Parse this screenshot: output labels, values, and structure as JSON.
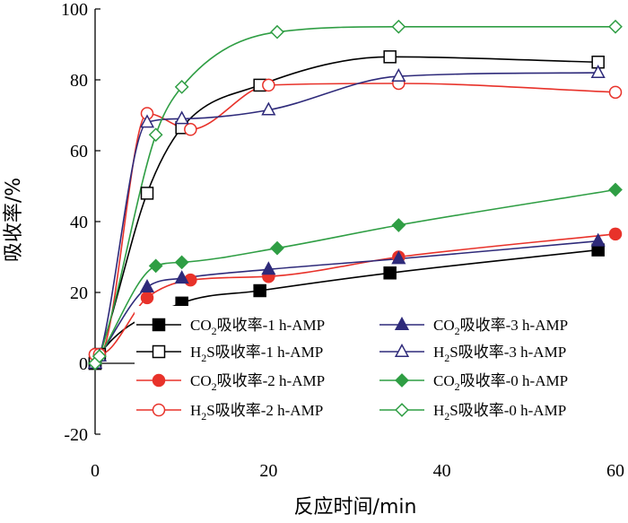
{
  "chart_data": {
    "type": "scatter",
    "xlabel": "反应时间/min",
    "ylabel": "吸收率/%",
    "xlim": [
      0,
      60
    ],
    "ylim": [
      -20,
      100
    ],
    "xticks": [
      "0",
      "20",
      "40",
      "60"
    ],
    "yticks": [
      "-20",
      "0",
      "20",
      "40",
      "60",
      "80",
      "100"
    ],
    "legend_position": "bottom-center",
    "series": [
      {
        "name": "CO2吸收率-1 h-AMP",
        "legend_main": "CO",
        "legend_sub": "2",
        "legend_rest": "吸收率-1 h-AMP",
        "color": "#000000",
        "marker": "square",
        "filled": true,
        "x": [
          0,
          0.5,
          10,
          19,
          34,
          58
        ],
        "y": [
          0,
          2.5,
          17,
          20.5,
          25.5,
          32
        ]
      },
      {
        "name": "H2S吸收率-1 h-AMP",
        "legend_main": "H",
        "legend_sub": "2",
        "legend_rest": "S吸收率-1 h-AMP",
        "color": "#000000",
        "marker": "square",
        "filled": false,
        "x": [
          0,
          0.5,
          6,
          10,
          19,
          34,
          58
        ],
        "y": [
          0,
          2.5,
          48,
          66.5,
          78.5,
          86.5,
          85
        ]
      },
      {
        "name": "CO2吸收率-2 h-AMP",
        "legend_main": "CO",
        "legend_sub": "2",
        "legend_rest": "吸收率-2 h-AMP",
        "color": "#e8322a",
        "marker": "circle",
        "filled": true,
        "x": [
          0,
          0.5,
          6,
          11,
          20,
          35,
          60
        ],
        "y": [
          2.5,
          2.5,
          18.5,
          23.5,
          24.5,
          30,
          36.5
        ]
      },
      {
        "name": "H2S吸收率-2 h-AMP",
        "legend_main": "H",
        "legend_sub": "2",
        "legend_rest": "S吸收率-2 h-AMP",
        "color": "#e8322a",
        "marker": "circle",
        "filled": false,
        "x": [
          0,
          0.5,
          6,
          11,
          20,
          35,
          60
        ],
        "y": [
          2.5,
          2.5,
          70.5,
          66,
          78.5,
          79,
          76.5
        ]
      },
      {
        "name": "CO2吸收率-3 h-AMP",
        "legend_main": "CO",
        "legend_sub": "2",
        "legend_rest": "吸收率-3 h-AMP",
        "color": "#2e2a7a",
        "marker": "triangle",
        "filled": true,
        "x": [
          0,
          0.5,
          6,
          10,
          20,
          35,
          58
        ],
        "y": [
          0,
          2,
          21.5,
          24,
          26.5,
          29.5,
          34.5
        ]
      },
      {
        "name": "H2S吸收率-3 h-AMP",
        "legend_main": "H",
        "legend_sub": "2",
        "legend_rest": "S吸收率-3 h-AMP",
        "color": "#2e2a7a",
        "marker": "triangle",
        "filled": false,
        "x": [
          0,
          0.5,
          6,
          10,
          20,
          35,
          58
        ],
        "y": [
          0,
          2,
          68,
          69,
          71.5,
          81,
          82
        ]
      },
      {
        "name": "CO2吸收率-0 h-AMP",
        "legend_main": "CO",
        "legend_sub": "2",
        "legend_rest": "吸收率-0 h-AMP",
        "color": "#2f9e44",
        "marker": "diamond",
        "filled": true,
        "x": [
          0,
          0.5,
          7,
          10,
          21,
          35,
          60
        ],
        "y": [
          0,
          2,
          27.5,
          28.5,
          32.5,
          39,
          49
        ]
      },
      {
        "name": "H2S吸收率-0 h-AMP",
        "legend_main": "H",
        "legend_sub": "2",
        "legend_rest": "S吸收率-0 h-AMP",
        "color": "#2f9e44",
        "marker": "diamond",
        "filled": false,
        "x": [
          0,
          0.5,
          7,
          10,
          21,
          35,
          60
        ],
        "y": [
          0,
          2,
          64.5,
          78,
          93.5,
          95,
          95
        ]
      }
    ],
    "legend_layout": [
      [
        "CO2吸收率-1 h-AMP",
        "CO2吸收率-3 h-AMP"
      ],
      [
        "H2S吸收率-1 h-AMP",
        "H2S吸收率-3 h-AMP"
      ],
      [
        "CO2吸收率-2 h-AMP",
        "CO2吸收率-0 h-AMP"
      ],
      [
        "H2S吸收率-2 h-AMP",
        "H2S吸收率-0 h-AMP"
      ]
    ]
  }
}
